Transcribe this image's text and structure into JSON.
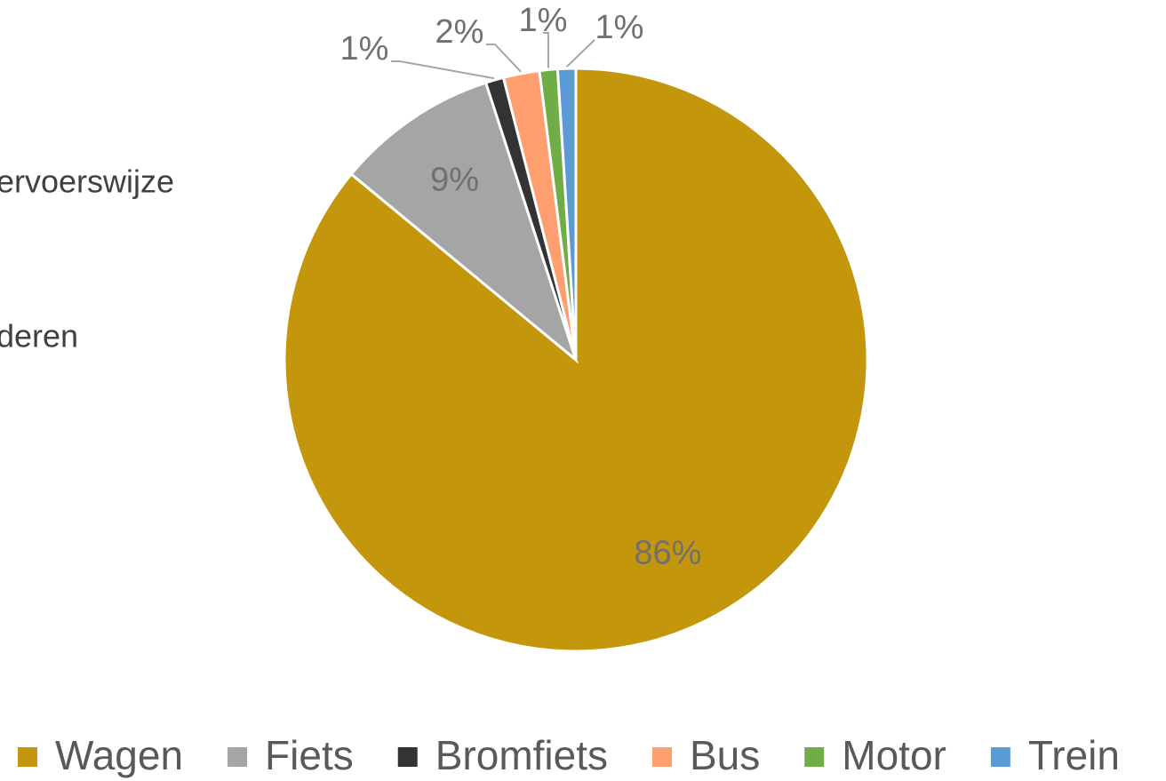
{
  "chart_data": {
    "type": "pie",
    "title_lines": [
      "ervoerswijze",
      "deren"
    ],
    "categories": [
      "Wagen",
      "Fiets",
      "Bromfiets",
      "Bus",
      "Motor",
      "Trein"
    ],
    "values": [
      86,
      9,
      1,
      2,
      1,
      1
    ],
    "value_labels": [
      "86%",
      "9%",
      "1%",
      "2%",
      "1%",
      "1%"
    ],
    "colors": [
      "#c4960c",
      "#a5a5a5",
      "#333333",
      "#ff9e6e",
      "#70ad47",
      "#5b9bd5"
    ],
    "legend": "bottom"
  }
}
